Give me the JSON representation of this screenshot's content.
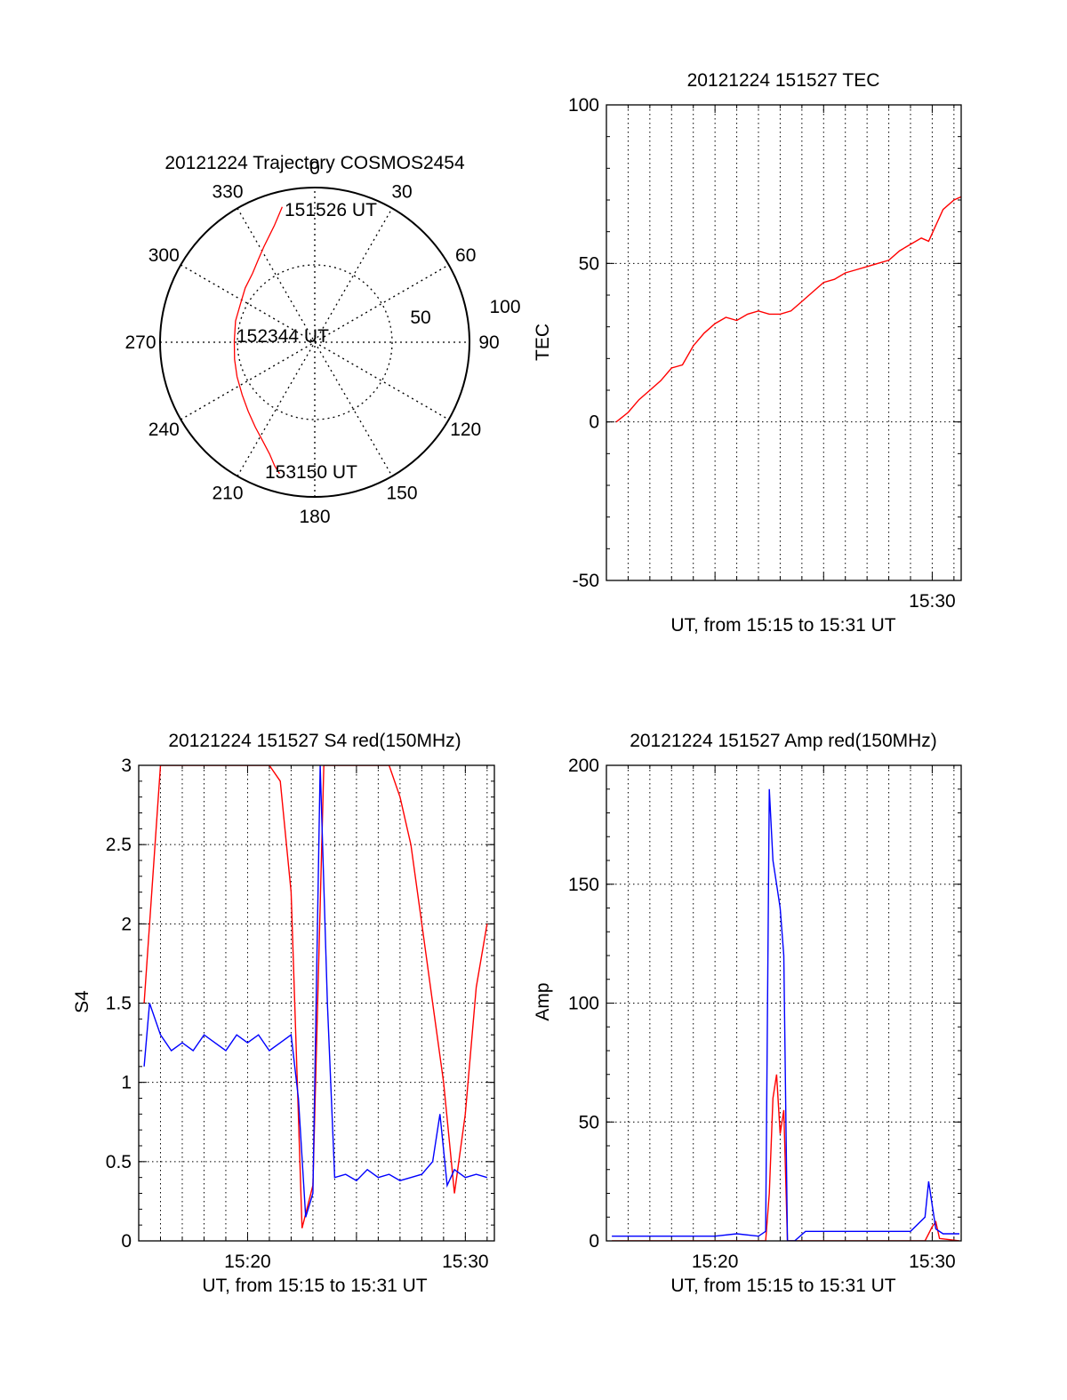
{
  "colors": {
    "red": "#ff0000",
    "blue": "#0000ff",
    "axis": "#000000",
    "grid": "#000000"
  },
  "chart_data": [
    {
      "type": "polar",
      "title": "20121224 Trajectory COSMOS2454",
      "azimuth_labels": [
        "0",
        "30",
        "60",
        "90",
        "120",
        "150",
        "180",
        "210",
        "240",
        "270",
        "300",
        "330"
      ],
      "radius_labels": [
        "50",
        "100"
      ],
      "rlim": [
        0,
        100
      ],
      "grid": true,
      "annotations": [
        "151526 UT",
        "152344 UT",
        "153150 UT"
      ],
      "series": [
        {
          "color": "red",
          "points_az_r": [
            [
              -13.5,
              90
            ],
            [
              -16,
              85
            ],
            [
              -19,
              80
            ],
            [
              -23,
              75
            ],
            [
              -28,
              70
            ],
            [
              -34,
              65
            ],
            [
              -42,
              60
            ],
            [
              -52,
              57
            ],
            [
              -63,
              54
            ],
            [
              -75,
              53
            ],
            [
              -89,
              52
            ],
            [
              -102,
              53
            ],
            [
              -114,
              55
            ],
            [
              -126,
              58
            ],
            [
              -136,
              62
            ],
            [
              -145,
              67
            ],
            [
              -152,
              72
            ],
            [
              -158,
              78
            ],
            [
              -162,
              84
            ],
            [
              -165,
              88
            ]
          ]
        }
      ]
    },
    {
      "type": "line",
      "title": "20121224 151527 TEC",
      "xlabel": "UT, from 15:15 to 15:31 UT",
      "ylabel": "TEC",
      "xlim": [
        "15:15:00",
        "15:31:20"
      ],
      "ylim": [
        -50,
        100
      ],
      "yticks": [
        "100",
        "50",
        "0",
        "-50"
      ],
      "xticks": [
        "15:30"
      ],
      "grid": true,
      "series": [
        {
          "color": "red",
          "x": [
            "15:15:27",
            "15:16:00",
            "15:16:30",
            "15:17:00",
            "15:17:30",
            "15:18:00",
            "15:18:30",
            "15:19:00",
            "15:19:30",
            "15:20:00",
            "15:20:30",
            "15:21:00",
            "15:21:30",
            "15:22:00",
            "15:22:30",
            "15:23:00",
            "15:23:30",
            "15:24:00",
            "15:24:30",
            "15:25:00",
            "15:25:30",
            "15:26:00",
            "15:26:30",
            "15:27:00",
            "15:27:30",
            "15:28:00",
            "15:28:30",
            "15:29:00",
            "15:29:30",
            "15:29:50",
            "15:30:10",
            "15:30:30",
            "15:31:00",
            "15:31:20"
          ],
          "y": [
            0,
            3,
            7,
            10,
            13,
            17,
            18,
            24,
            28,
            31,
            33,
            32,
            34,
            35,
            34,
            34,
            35,
            38,
            41,
            44,
            45,
            47,
            48,
            49,
            50,
            51,
            54,
            56,
            58,
            57,
            62,
            67,
            70,
            71
          ]
        }
      ]
    },
    {
      "type": "line",
      "title": "20121224 151527 S4 red(150MHz)",
      "xlabel": "UT, from 15:15 to 15:31 UT",
      "ylabel": "S4",
      "xlim": [
        "15:15:00",
        "15:31:20"
      ],
      "ylim": [
        0,
        3
      ],
      "yticks": [
        "3",
        "2.5",
        "2",
        "1.5",
        "1",
        "0.5",
        "0"
      ],
      "xticks": [
        "15:20",
        "15:30"
      ],
      "grid": true,
      "series": [
        {
          "color": "red",
          "x": [
            "15:15:15",
            "15:16:00",
            "15:17:00",
            "15:18:00",
            "15:19:00",
            "15:20:00",
            "15:20:30",
            "15:21:00",
            "15:21:30",
            "15:22:00",
            "15:22:30",
            "15:23:00",
            "15:23:30",
            "15:24:00",
            "15:24:30",
            "15:25:00",
            "15:25:30",
            "15:26:00",
            "15:26:30",
            "15:27:00",
            "15:27:30",
            "15:28:00",
            "15:28:30",
            "15:29:00",
            "15:29:30",
            "15:30:00",
            "15:30:30",
            "15:31:00"
          ],
          "y": [
            1.5,
            3,
            3,
            3,
            3,
            3,
            3,
            3,
            2.9,
            2.2,
            0.08,
            0.35,
            3,
            3,
            3,
            3,
            3,
            3,
            3,
            2.8,
            2.5,
            2.0,
            1.5,
            1.0,
            0.3,
            0.8,
            1.6,
            2.0
          ]
        },
        {
          "color": "blue",
          "x": [
            "15:15:15",
            "15:15:30",
            "15:16:00",
            "15:16:30",
            "15:17:00",
            "15:17:30",
            "15:18:00",
            "15:18:30",
            "15:19:00",
            "15:19:30",
            "15:20:00",
            "15:20:30",
            "15:21:00",
            "15:21:30",
            "15:22:00",
            "15:22:20",
            "15:22:40",
            "15:23:00",
            "15:23:20",
            "15:23:40",
            "15:24:00",
            "15:24:30",
            "15:25:00",
            "15:25:30",
            "15:26:00",
            "15:26:30",
            "15:27:00",
            "15:27:30",
            "15:28:00",
            "15:28:30",
            "15:28:50",
            "15:29:10",
            "15:29:30",
            "15:30:00",
            "15:30:30",
            "15:31:00"
          ],
          "y": [
            1.1,
            1.5,
            1.3,
            1.2,
            1.25,
            1.2,
            1.3,
            1.25,
            1.2,
            1.3,
            1.25,
            1.3,
            1.2,
            1.25,
            1.3,
            0.9,
            0.15,
            0.3,
            3,
            1.5,
            0.4,
            0.42,
            0.38,
            0.45,
            0.4,
            0.42,
            0.38,
            0.4,
            0.42,
            0.5,
            0.8,
            0.35,
            0.45,
            0.4,
            0.42,
            0.4
          ]
        }
      ]
    },
    {
      "type": "line",
      "title": "20121224 151527 Amp red(150MHz)",
      "xlabel": "UT, from 15:15 to 15:31 UT",
      "ylabel": "Amp",
      "xlim": [
        "15:15:00",
        "15:31:20"
      ],
      "ylim": [
        0,
        200
      ],
      "yticks": [
        "200",
        "150",
        "100",
        "50",
        "0"
      ],
      "xticks": [
        "15:20",
        "15:30"
      ],
      "grid": true,
      "series": [
        {
          "color": "red",
          "x": [
            "15:15:15",
            "15:22:20",
            "15:22:30",
            "15:22:40",
            "15:22:50",
            "15:23:00",
            "15:23:10",
            "15:23:20",
            "15:29:40",
            "15:29:50",
            "15:30:00",
            "15:30:10",
            "15:30:20",
            "15:31:15"
          ],
          "y": [
            0,
            0,
            20,
            60,
            70,
            45,
            55,
            0,
            0,
            3,
            6,
            8,
            1,
            0
          ]
        },
        {
          "color": "blue",
          "x": [
            "15:15:15",
            "15:16:00",
            "15:17:00",
            "15:18:00",
            "15:19:00",
            "15:20:00",
            "15:21:00",
            "15:22:00",
            "15:22:20",
            "15:22:30",
            "15:22:40",
            "15:22:50",
            "15:23:00",
            "15:23:10",
            "15:23:20",
            "15:23:40",
            "15:24:10",
            "15:25:00",
            "15:26:00",
            "15:27:00",
            "15:28:00",
            "15:29:00",
            "15:29:40",
            "15:29:50",
            "15:30:00",
            "15:30:10",
            "15:30:30",
            "15:31:00",
            "15:31:15"
          ],
          "y": [
            2,
            2,
            2,
            2,
            2,
            2,
            3,
            2,
            4,
            190,
            160,
            150,
            140,
            120,
            0,
            0,
            4,
            4,
            4,
            4,
            4,
            4,
            10,
            25,
            15,
            5,
            3,
            3,
            3
          ]
        }
      ]
    }
  ]
}
